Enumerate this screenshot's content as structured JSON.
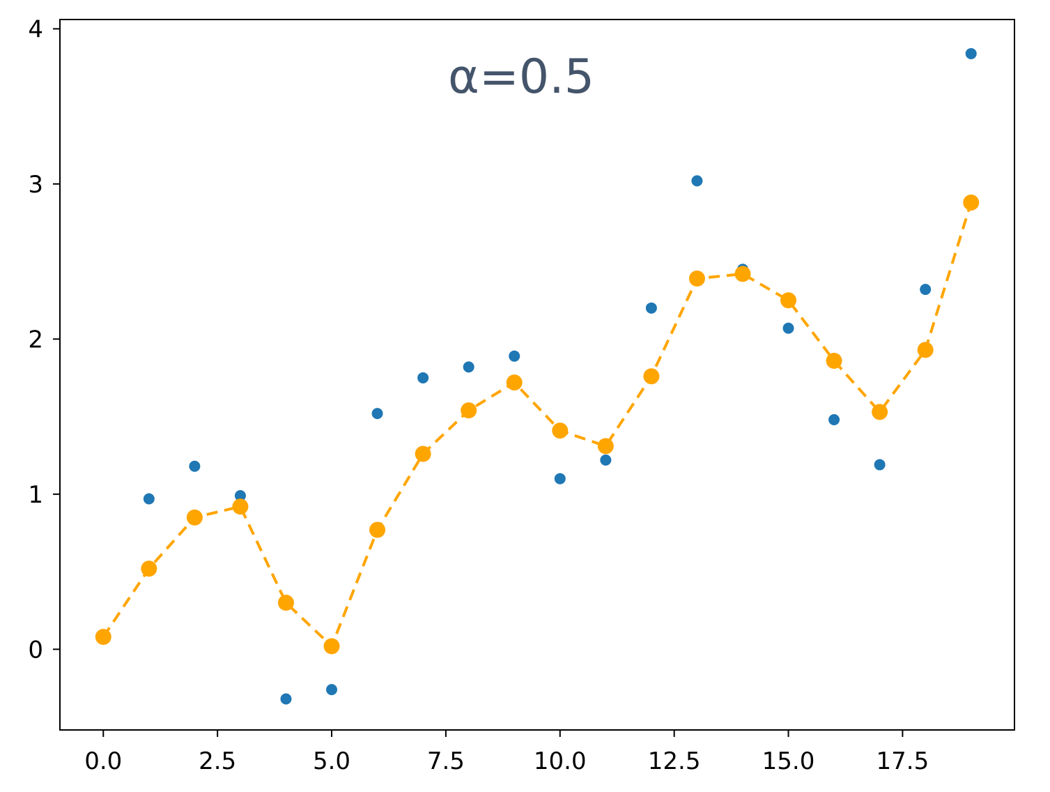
{
  "chart_data": {
    "type": "scatter",
    "title": "",
    "xlabel": "",
    "ylabel": "",
    "xlim": [
      -0.95,
      19.95
    ],
    "ylim": [
      -0.52,
      4.06
    ],
    "grid": false,
    "annotation": "α=0.5",
    "x_ticks": [
      0.0,
      2.5,
      5.0,
      7.5,
      10.0,
      12.5,
      15.0,
      17.5
    ],
    "x_tick_labels": [
      "0.0",
      "2.5",
      "5.0",
      "7.5",
      "10.0",
      "12.5",
      "15.0",
      "17.5"
    ],
    "y_ticks": [
      0,
      1,
      2,
      3,
      4
    ],
    "y_tick_labels": [
      "0",
      "1",
      "2",
      "3",
      "4"
    ],
    "x": [
      0,
      1,
      2,
      3,
      4,
      5,
      6,
      7,
      8,
      9,
      10,
      11,
      12,
      13,
      14,
      15,
      16,
      17,
      18,
      19
    ],
    "series": [
      {
        "style": "points",
        "color": "#1f77b4",
        "values": [
          0.08,
          0.97,
          1.18,
          0.99,
          -0.32,
          -0.26,
          1.52,
          1.75,
          1.82,
          1.89,
          1.1,
          1.22,
          2.2,
          3.02,
          2.45,
          2.07,
          1.48,
          1.19,
          2.32,
          3.84
        ]
      },
      {
        "style": "dashed-line-markers",
        "color": "#ffa500",
        "values": [
          0.08,
          0.52,
          0.85,
          0.92,
          0.3,
          0.02,
          0.77,
          1.26,
          1.54,
          1.72,
          1.41,
          1.31,
          1.76,
          2.39,
          2.42,
          2.25,
          1.86,
          1.53,
          1.93,
          2.88
        ]
      }
    ]
  }
}
